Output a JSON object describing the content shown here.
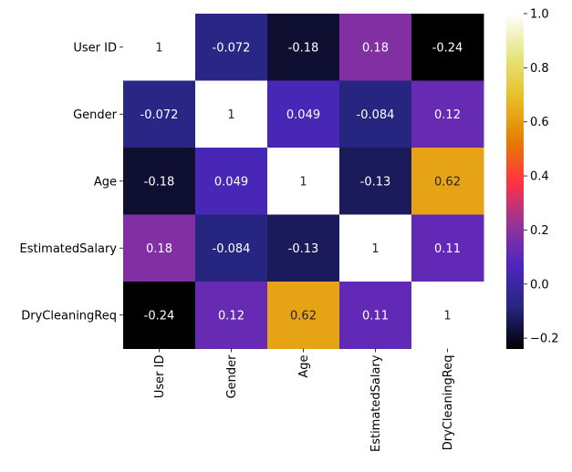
{
  "chart_data": {
    "type": "heatmap",
    "title": "",
    "xlabel": "",
    "ylabel": "",
    "row_labels": [
      "User ID",
      "Gender",
      "Age",
      "EstimatedSalary",
      "DryCleaningReq"
    ],
    "col_labels": [
      "User ID",
      "Gender",
      "Age",
      "EstimatedSalary",
      "DryCleaningReq"
    ],
    "values": [
      [
        1,
        -0.072,
        -0.18,
        0.18,
        -0.24
      ],
      [
        -0.072,
        1,
        0.049,
        -0.084,
        0.12
      ],
      [
        -0.18,
        0.049,
        1,
        -0.13,
        0.62
      ],
      [
        0.18,
        -0.084,
        -0.13,
        1,
        0.11
      ],
      [
        -0.24,
        0.12,
        0.62,
        0.11,
        1
      ]
    ],
    "cell_labels": [
      [
        "1",
        "-0.072",
        "-0.18",
        "0.18",
        "-0.24"
      ],
      [
        "-0.072",
        "1",
        "0.049",
        "-0.084",
        "0.12"
      ],
      [
        "-0.18",
        "0.049",
        "1",
        "-0.13",
        "0.62"
      ],
      [
        "0.18",
        "-0.084",
        "-0.13",
        "1",
        "0.11"
      ],
      [
        "-0.24",
        "0.12",
        "0.62",
        "0.11",
        "1"
      ]
    ],
    "colormap": "CMRmap",
    "colorbar": {
      "vmin": -0.24,
      "vmax": 1.0,
      "ticks": [
        -0.2,
        0.0,
        0.2,
        0.4,
        0.6,
        0.8,
        1.0
      ],
      "tick_labels": [
        "−0.2",
        "0.0",
        "0.2",
        "0.4",
        "0.6",
        "0.8",
        "1.0"
      ]
    },
    "colors": {
      "stops": [
        "#000000",
        "#262680",
        "#4d26bf",
        "#993399",
        "#ff3340",
        "#e68000",
        "#e6bf26",
        "#e6e680",
        "#ffffff"
      ],
      "text_light": "#ffffff",
      "text_dark": "#262626",
      "axis": "#000000"
    },
    "grid": false,
    "legend": "none"
  }
}
